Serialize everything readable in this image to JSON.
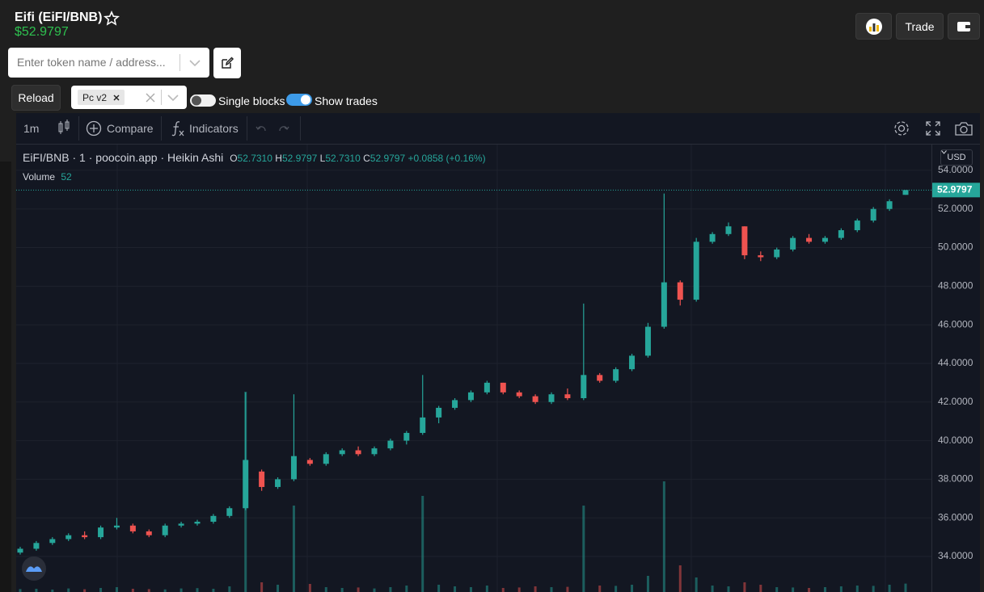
{
  "header": {
    "title": "Eifi (EiFI/BNB)",
    "price": "$52.9797",
    "trade_button": "Trade"
  },
  "search": {
    "placeholder": "Enter token name / address..."
  },
  "controls": {
    "reload": "Reload",
    "version_tag": "Pc v2",
    "single_blocks": "Single blocks",
    "show_trades": "Show trades"
  },
  "toolbar": {
    "interval": "1m",
    "compare": "Compare",
    "indicators": "Indicators"
  },
  "chart_data": {
    "type": "candlestick",
    "legend": {
      "symbol": "EiFI/BNB",
      "interval": "1",
      "source": "poocoin.app",
      "style": "Heikin Ashi",
      "open_letter": "O",
      "open": "52.7310",
      "high_letter": "H",
      "high": "52.9797",
      "low_letter": "L",
      "low": "52.7310",
      "close_letter": "C",
      "close": "52.9797",
      "change": "+0.0858 (+0.16%)"
    },
    "volume_label": "Volume",
    "volume_value": "52",
    "currency": "USD",
    "up_color": "#26a69a",
    "down_color": "#ef5350",
    "grid": true,
    "open": [
      34.2,
      34.4,
      34.7,
      34.9,
      35.1,
      35.0,
      35.5,
      35.6,
      35.3,
      35.1,
      35.6,
      35.7,
      35.8,
      36.1,
      36.5,
      38.4,
      37.6,
      38.0,
      39.0,
      38.8,
      39.3,
      39.5,
      39.3,
      39.6,
      40.0,
      40.4,
      41.2,
      41.7,
      42.1,
      42.5,
      43.0,
      42.5,
      42.3,
      42.0,
      42.4,
      42.2,
      43.4,
      43.1,
      43.7,
      44.4,
      45.9,
      48.2,
      47.3,
      50.3,
      50.7,
      51.1,
      49.6,
      49.5,
      49.9,
      50.5,
      50.3,
      50.5,
      50.9,
      51.4,
      52.0,
      52.731
    ],
    "high": [
      34.5,
      34.8,
      35.0,
      35.2,
      35.3,
      35.6,
      36.0,
      35.7,
      35.4,
      35.7,
      35.8,
      35.9,
      36.2,
      36.6,
      42.5,
      38.5,
      38.1,
      42.4,
      39.1,
      39.4,
      39.6,
      39.7,
      39.7,
      40.1,
      40.5,
      43.4,
      41.8,
      42.2,
      42.6,
      43.1,
      43.0,
      42.6,
      42.4,
      42.5,
      42.7,
      47.1,
      43.5,
      43.8,
      44.5,
      46.1,
      52.8,
      48.3,
      50.5,
      50.8,
      51.3,
      51.1,
      49.8,
      50.0,
      50.6,
      50.7,
      50.6,
      51.0,
      51.5,
      52.1,
      52.5,
      52.9797
    ],
    "low": [
      34.1,
      34.3,
      34.6,
      34.8,
      34.9,
      34.9,
      35.4,
      35.2,
      35.0,
      35.0,
      35.5,
      35.6,
      35.7,
      36.0,
      36.4,
      37.4,
      37.5,
      37.9,
      38.7,
      38.7,
      39.2,
      39.2,
      39.2,
      39.5,
      39.8,
      40.3,
      40.9,
      41.6,
      42.0,
      42.4,
      42.4,
      42.2,
      41.9,
      41.9,
      42.1,
      42.1,
      43.0,
      43.0,
      43.6,
      44.3,
      45.8,
      47.0,
      47.2,
      50.2,
      50.6,
      49.4,
      49.3,
      49.4,
      49.8,
      50.2,
      50.2,
      50.4,
      50.8,
      51.3,
      51.9,
      52.731
    ],
    "close": [
      34.4,
      34.7,
      34.9,
      35.1,
      35.0,
      35.5,
      35.6,
      35.3,
      35.1,
      35.6,
      35.7,
      35.8,
      36.1,
      36.5,
      39.0,
      37.6,
      38.0,
      39.2,
      38.8,
      39.3,
      39.5,
      39.3,
      39.6,
      40.0,
      40.4,
      41.2,
      41.7,
      42.1,
      42.5,
      43.0,
      42.5,
      42.3,
      42.0,
      42.4,
      42.2,
      43.4,
      43.1,
      43.7,
      44.4,
      45.9,
      48.2,
      47.3,
      50.3,
      50.7,
      51.1,
      49.6,
      49.5,
      49.9,
      50.5,
      50.3,
      50.5,
      50.9,
      51.4,
      52.0,
      52.4,
      52.9797
    ],
    "volume": [
      18,
      20,
      15,
      22,
      17,
      25,
      30,
      20,
      18,
      16,
      22,
      24,
      20,
      35,
      1240,
      60,
      45,
      535,
      50,
      30,
      25,
      28,
      22,
      30,
      40,
      595,
      45,
      35,
      30,
      40,
      25,
      28,
      35,
      30,
      32,
      535,
      40,
      38,
      45,
      100,
      685,
      165,
      90,
      40,
      35,
      60,
      45,
      30,
      28,
      25,
      30,
      35,
      40,
      38,
      45,
      52
    ],
    "ylim": [
      32.16,
      55.21
    ],
    "yticks": [
      {
        "value": 34,
        "label": "34.0000"
      },
      {
        "value": 36,
        "label": "36.0000"
      },
      {
        "value": 38,
        "label": "38.0000"
      },
      {
        "value": 40,
        "label": "40.0000"
      },
      {
        "value": 42,
        "label": "42.0000"
      },
      {
        "value": 44,
        "label": "44.0000"
      },
      {
        "value": 46,
        "label": "46.0000"
      },
      {
        "value": 48,
        "label": "48.0000"
      },
      {
        "value": 50,
        "label": "50.0000"
      },
      {
        "value": 52,
        "label": "52.0000"
      },
      {
        "value": 54,
        "label": "54.0000"
      }
    ],
    "last_price": 52.9797
  }
}
